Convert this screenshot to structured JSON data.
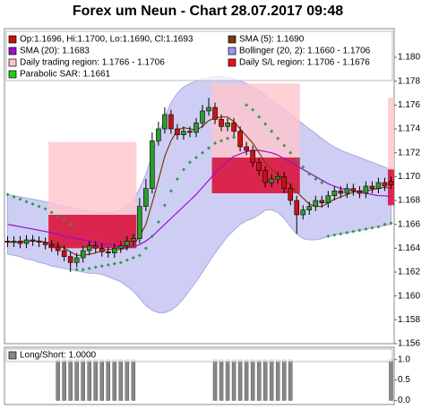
{
  "chart_data": {
    "type": "candlestick",
    "title": "Forex um Neun - Chart 28.07.2017 09:48",
    "ylim": [
      1.156,
      1.1824
    ],
    "yticks": [
      1.156,
      1.158,
      {
        "value": 1.16,
        "label": "1.160"
      },
      1.162,
      1.164,
      1.166,
      1.168,
      {
        "value": 1.17,
        "label": "1.170"
      },
      1.172,
      1.174,
      1.176,
      1.178,
      {
        "value": 1.18,
        "label": "1.180"
      }
    ],
    "up_color": "#2e9a2e",
    "down_color": "#cc1111",
    "candles": [
      [
        1.1646,
        1.165,
        1.1641,
        1.1645
      ],
      [
        1.1645,
        1.165,
        1.1641,
        1.1646
      ],
      [
        1.1646,
        1.165,
        1.164,
        1.1644
      ],
      [
        1.1644,
        1.1651,
        1.164,
        1.1647
      ],
      [
        1.1647,
        1.1651,
        1.1642,
        1.1646
      ],
      [
        1.1646,
        1.165,
        1.1641,
        1.1645
      ],
      [
        1.1645,
        1.1649,
        1.1639,
        1.1643
      ],
      [
        1.1643,
        1.1647,
        1.1637,
        1.1641
      ],
      [
        1.1641,
        1.1645,
        1.1634,
        1.1638
      ],
      [
        1.1638,
        1.1642,
        1.1629,
        1.1633
      ],
      [
        1.1633,
        1.1637,
        1.162,
        1.1628
      ],
      [
        1.1628,
        1.1636,
        1.1624,
        1.1632
      ],
      [
        1.1632,
        1.1642,
        1.1628,
        1.1638
      ],
      [
        1.1638,
        1.1646,
        1.1634,
        1.1642
      ],
      [
        1.1642,
        1.1646,
        1.1636,
        1.164
      ],
      [
        1.164,
        1.1644,
        1.1633,
        1.1637
      ],
      [
        1.1637,
        1.1641,
        1.1632,
        1.1636
      ],
      [
        1.1636,
        1.1644,
        1.1632,
        1.164
      ],
      [
        1.164,
        1.1646,
        1.1636,
        1.1642
      ],
      [
        1.1642,
        1.165,
        1.1638,
        1.1646
      ],
      [
        1.1646,
        1.1652,
        1.1642,
        1.1648
      ],
      [
        1.1648,
        1.1682,
        1.1644,
        1.1675
      ],
      [
        1.1675,
        1.1698,
        1.1671,
        1.169
      ],
      [
        1.169,
        1.1737,
        1.1686,
        1.173
      ],
      [
        1.173,
        1.1746,
        1.1726,
        1.174
      ],
      [
        1.174,
        1.1758,
        1.1736,
        1.1752
      ],
      [
        1.1752,
        1.1756,
        1.1736,
        1.174
      ],
      [
        1.174,
        1.1744,
        1.1731,
        1.1735
      ],
      [
        1.1735,
        1.1742,
        1.1731,
        1.1738
      ],
      [
        1.1738,
        1.1742,
        1.1733,
        1.1737
      ],
      [
        1.1737,
        1.1749,
        1.1733,
        1.1745
      ],
      [
        1.1745,
        1.176,
        1.1741,
        1.1755
      ],
      [
        1.1755,
        1.1766,
        1.1751,
        1.1758
      ],
      [
        1.1758,
        1.1762,
        1.1744,
        1.1748
      ],
      [
        1.1748,
        1.1752,
        1.1738,
        1.1742
      ],
      [
        1.1742,
        1.1749,
        1.1738,
        1.1745
      ],
      [
        1.1745,
        1.1749,
        1.1734,
        1.1738
      ],
      [
        1.1738,
        1.1742,
        1.1721,
        1.1725
      ],
      [
        1.1725,
        1.1729,
        1.1718,
        1.1722
      ],
      [
        1.1722,
        1.1726,
        1.1708,
        1.1712
      ],
      [
        1.1712,
        1.1716,
        1.1701,
        1.1705
      ],
      [
        1.1705,
        1.1709,
        1.1691,
        1.1695
      ],
      [
        1.1695,
        1.1702,
        1.1691,
        1.1698
      ],
      [
        1.1698,
        1.1704,
        1.1694,
        1.17
      ],
      [
        1.17,
        1.1704,
        1.1686,
        1.169
      ],
      [
        1.169,
        1.1694,
        1.1676,
        1.168
      ],
      [
        1.168,
        1.1684,
        1.1652,
        1.1668
      ],
      [
        1.1668,
        1.1676,
        1.1664,
        1.1672
      ],
      [
        1.1672,
        1.1679,
        1.1668,
        1.1675
      ],
      [
        1.1675,
        1.1684,
        1.1671,
        1.168
      ],
      [
        1.168,
        1.1684,
        1.1674,
        1.1678
      ],
      [
        1.1678,
        1.1688,
        1.1674,
        1.1684
      ],
      [
        1.1684,
        1.1692,
        1.168,
        1.1688
      ],
      [
        1.1688,
        1.1692,
        1.1682,
        1.1686
      ],
      [
        1.1686,
        1.1694,
        1.1682,
        1.169
      ],
      [
        1.169,
        1.1694,
        1.1684,
        1.1688
      ],
      [
        1.1688,
        1.1692,
        1.1682,
        1.1686
      ],
      [
        1.1686,
        1.1696,
        1.1682,
        1.1692
      ],
      [
        1.1692,
        1.1696,
        1.1686,
        1.169
      ],
      [
        1.169,
        1.1699,
        1.1686,
        1.1695
      ],
      [
        1.1695,
        1.1699,
        1.1688,
        1.1692
      ],
      [
        1.1696,
        1.17,
        1.169,
        1.1693
      ]
    ],
    "sma5": {
      "color": "#7a3a10",
      "values": [
        1.1645,
        1.1645,
        1.1645,
        1.1646,
        1.1646,
        1.1646,
        1.1645,
        1.1644,
        1.1643,
        1.164,
        1.1637,
        1.1634,
        1.1634,
        1.1635,
        1.1636,
        1.1638,
        1.1639,
        1.1639,
        1.1639,
        1.164,
        1.1642,
        1.165,
        1.166,
        1.1678,
        1.1697,
        1.1717,
        1.173,
        1.1739,
        1.1741,
        1.174,
        1.1739,
        1.1742,
        1.1747,
        1.1749,
        1.175,
        1.175,
        1.1746,
        1.174,
        1.1734,
        1.1728,
        1.172,
        1.1712,
        1.1706,
        1.1702,
        1.1698,
        1.1693,
        1.1687,
        1.1682,
        1.1677,
        1.1675,
        1.1675,
        1.1678,
        1.1681,
        1.1683,
        1.1685,
        1.1687,
        1.1688,
        1.1688,
        1.1689,
        1.169,
        1.1691,
        1.169
      ]
    },
    "sma20": {
      "color": "#9a10c8",
      "values": [
        1.166,
        1.1659,
        1.1658,
        1.1657,
        1.1656,
        1.1655,
        1.1654,
        1.1653,
        1.1652,
        1.165,
        1.1649,
        1.1648,
        1.1647,
        1.1646,
        1.1645,
        1.1644,
        1.1643,
        1.1642,
        1.1641,
        1.1641,
        1.1641,
        1.1643,
        1.1646,
        1.165,
        1.1655,
        1.166,
        1.1665,
        1.167,
        1.1675,
        1.168,
        1.1685,
        1.1691,
        1.1697,
        1.1703,
        1.1708,
        1.1713,
        1.1717,
        1.1719,
        1.1721,
        1.1722,
        1.1722,
        1.1721,
        1.172,
        1.1718,
        1.1715,
        1.1712,
        1.1709,
        1.1706,
        1.1703,
        1.17,
        1.1697,
        1.1694,
        1.1692,
        1.169,
        1.1689,
        1.1688,
        1.1687,
        1.1686,
        1.1685,
        1.1684,
        1.1684,
        1.1683
      ]
    },
    "bollinger": {
      "color": "#c6c6f2",
      "upper": [
        1.1685,
        1.1684,
        1.1683,
        1.1682,
        1.1681,
        1.168,
        1.1679,
        1.1678,
        1.1676,
        1.1675,
        1.1674,
        1.1673,
        1.1672,
        1.1671,
        1.167,
        1.167,
        1.167,
        1.167,
        1.1672,
        1.1676,
        1.168,
        1.169,
        1.1702,
        1.1718,
        1.1735,
        1.175,
        1.1762,
        1.177,
        1.1775,
        1.1778,
        1.178,
        1.1782,
        1.1783,
        1.1784,
        1.1784,
        1.1783,
        1.1782,
        1.178,
        1.1778,
        1.1775,
        1.1772,
        1.1768,
        1.1764,
        1.176,
        1.1756,
        1.1752,
        1.1748,
        1.1744,
        1.174,
        1.1736,
        1.1732,
        1.1728,
        1.1725,
        1.1722,
        1.172,
        1.1718,
        1.1716,
        1.1714,
        1.1712,
        1.171,
        1.1708,
        1.1706
      ],
      "lower": [
        1.1635,
        1.1634,
        1.1633,
        1.1631,
        1.163,
        1.1628,
        1.1627,
        1.1625,
        1.1624,
        1.1623,
        1.1622,
        1.1621,
        1.162,
        1.1619,
        1.1619,
        1.1618,
        1.1616,
        1.1614,
        1.1612,
        1.1608,
        1.1604,
        1.1598,
        1.1592,
        1.1588,
        1.1586,
        1.1586,
        1.1588,
        1.1592,
        1.1598,
        1.1605,
        1.1612,
        1.162,
        1.1628,
        1.1636,
        1.1643,
        1.165,
        1.1655,
        1.166,
        1.1663,
        1.1665,
        1.1668,
        1.1672,
        1.1672,
        1.167,
        1.1665,
        1.1658,
        1.1652,
        1.1648,
        1.1647,
        1.1647,
        1.1648,
        1.165,
        1.1651,
        1.1652,
        1.1653,
        1.1654,
        1.1655,
        1.1656,
        1.1657,
        1.1658,
        1.1659,
        1.166
      ]
    },
    "sar": {
      "color": "#2e9a4a",
      "values": [
        1.1685,
        1.1683,
        1.1681,
        1.1679,
        1.1677,
        1.1675,
        1.1673,
        1.167,
        1.1667,
        1.1664,
        1.166,
        1.1622,
        1.1622,
        1.1623,
        1.1624,
        1.1625,
        1.1626,
        1.1627,
        1.1628,
        1.163,
        1.1632,
        1.1634,
        1.164,
        1.165,
        1.1662,
        1.1676,
        1.1688,
        1.1698,
        1.1706,
        1.1712,
        1.1716,
        1.172,
        1.1724,
        1.1728,
        1.173,
        1.1732,
        1.1733,
        1.1734,
        1.176,
        1.1756,
        1.175,
        1.1744,
        1.1738,
        1.1732,
        1.1726,
        1.172,
        1.1714,
        1.1708,
        1.1702,
        1.1698,
        1.1695,
        1.165,
        1.1651,
        1.1652,
        1.1653,
        1.1654,
        1.1655,
        1.1656,
        1.1657,
        1.1658,
        1.166,
        1.1661
      ]
    },
    "trading_regions": {
      "color": "#ffc4cc",
      "regions": [
        {
          "start": 7,
          "end": 20,
          "high": 1.1729,
          "low": 1.1668
        },
        {
          "start": 33,
          "end": 46,
          "high": 1.1778,
          "low": 1.1716
        },
        {
          "start": 61,
          "end": 61,
          "high": 1.1766,
          "low": 1.1706
        }
      ]
    },
    "sl_regions": {
      "color": "#dc143c",
      "regions": [
        {
          "start": 7,
          "end": 20,
          "high": 1.1668,
          "low": 1.164
        },
        {
          "start": 33,
          "end": 46,
          "high": 1.1716,
          "low": 1.1686
        },
        {
          "start": 61,
          "end": 61,
          "high": 1.1706,
          "low": 1.1676
        }
      ]
    },
    "legend": [
      {
        "label": "Op:1.1696, Hi:1.1700, Lo:1.1690, Cl:1.1693",
        "color": "#cc1111"
      },
      {
        "label": "SMA (5): 1.1690",
        "color": "#7a3a10"
      },
      {
        "label": "SMA (20): 1.1683",
        "color": "#9a10c8"
      },
      {
        "label": "Bollinger (20, 2): 1.1660 - 1.1706",
        "color": "#9a9ae8"
      },
      {
        "label": "Daily trading region: 1.1766 - 1.1706",
        "color": "#ffc4cc"
      },
      {
        "label": "Daily S/L region: 1.1706 - 1.1676",
        "color": "#ee1111"
      },
      {
        "label": "Parabolic SAR: 1.1661",
        "color": "#22cc22"
      }
    ],
    "long_short": {
      "label": "Long/Short: 1.0000",
      "color": "#888888",
      "ylim": [
        -0.1,
        1.3
      ],
      "yticks": [
        {
          "value": 0,
          "label": "0.0"
        },
        {
          "value": 0.5,
          "label": "0.5"
        },
        {
          "value": 1,
          "label": "1.0"
        }
      ],
      "values": [
        0,
        0,
        0,
        0,
        0,
        0,
        0,
        0,
        1,
        1,
        1,
        1,
        1,
        1,
        1,
        1,
        1,
        1,
        1,
        1,
        1,
        0,
        0,
        0,
        0,
        0,
        0,
        0,
        0,
        0,
        0,
        0,
        0,
        1,
        1,
        1,
        1,
        1,
        1,
        1,
        1,
        1,
        1,
        1,
        1,
        1,
        0,
        0,
        0,
        0,
        0,
        0,
        0,
        0,
        0,
        0,
        0,
        0,
        0,
        0,
        0,
        1
      ]
    }
  }
}
